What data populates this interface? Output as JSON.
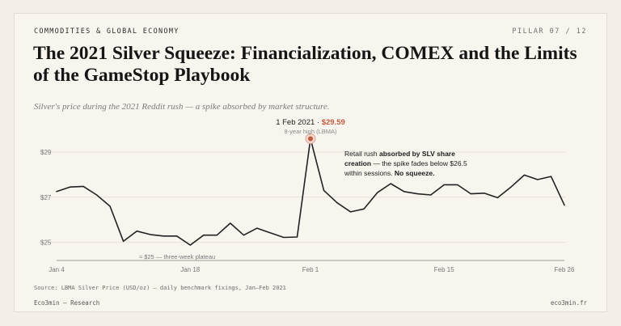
{
  "header": {
    "kicker": "COMMODITIES & GLOBAL ECONOMY",
    "pillar": "PILLAR 07 / 12",
    "title": "The 2021 Silver Squeeze: Financialization, COMEX and the Limits of the GameStop Playbook",
    "subtitle": "Silver's price during the 2021 Reddit rush — a spike absorbed by market structure."
  },
  "chart_data": {
    "type": "line",
    "x": [
      "2021-01-04",
      "2021-01-05",
      "2021-01-06",
      "2021-01-07",
      "2021-01-08",
      "2021-01-11",
      "2021-01-12",
      "2021-01-13",
      "2021-01-14",
      "2021-01-15",
      "2021-01-18",
      "2021-01-19",
      "2021-01-20",
      "2021-01-21",
      "2021-01-22",
      "2021-01-25",
      "2021-01-26",
      "2021-01-27",
      "2021-01-28",
      "2021-02-01",
      "2021-02-02",
      "2021-02-03",
      "2021-02-04",
      "2021-02-05",
      "2021-02-08",
      "2021-02-09",
      "2021-02-10",
      "2021-02-11",
      "2021-02-12",
      "2021-02-15",
      "2021-02-16",
      "2021-02-17",
      "2021-02-18",
      "2021-02-19",
      "2021-02-22",
      "2021-02-23",
      "2021-02-24",
      "2021-02-25",
      "2021-02-26"
    ],
    "values": [
      27.25,
      27.45,
      27.48,
      27.1,
      26.6,
      25.05,
      25.5,
      25.35,
      25.28,
      25.28,
      24.88,
      25.32,
      25.32,
      25.85,
      25.32,
      25.63,
      25.42,
      25.22,
      25.24,
      29.59,
      27.3,
      26.75,
      26.35,
      26.48,
      27.2,
      27.6,
      27.25,
      27.15,
      27.1,
      27.55,
      27.55,
      27.15,
      27.18,
      26.98,
      27.45,
      27.98,
      27.78,
      27.92,
      26.65
    ],
    "y_ticks": [
      "$25",
      "$27",
      "$29"
    ],
    "x_ticks": [
      "Jan 4",
      "Jan 18",
      "Feb 1",
      "Feb 15",
      "Feb 26"
    ],
    "ylim": [
      24.2,
      30.0
    ],
    "grid": true,
    "peak": {
      "date_label": "1 Feb 2021 ·",
      "value_label": "$29.59",
      "note": "8-year high (LBMA)",
      "index": 19
    },
    "annotation": {
      "line1_pre": "Retail rush ",
      "line1_bold": "absorbed by SLV share",
      "line2_bold": "creation",
      "line2_post": " — the spike fades below $26.5",
      "line3_pre": "within sessions. ",
      "line3_bold": "No squeeze."
    },
    "plateau_label": "≈ $25 — three-week plateau",
    "plateau_value": 25.0,
    "line_color": "#222222",
    "peak_color": "#c0593d"
  },
  "footer": {
    "source": "Source: LBMA Silver Price (USD/oz) — daily benchmark fixings, Jan–Feb 2021",
    "brand": "Eco3min — Research",
    "site": "eco3min.fr"
  }
}
